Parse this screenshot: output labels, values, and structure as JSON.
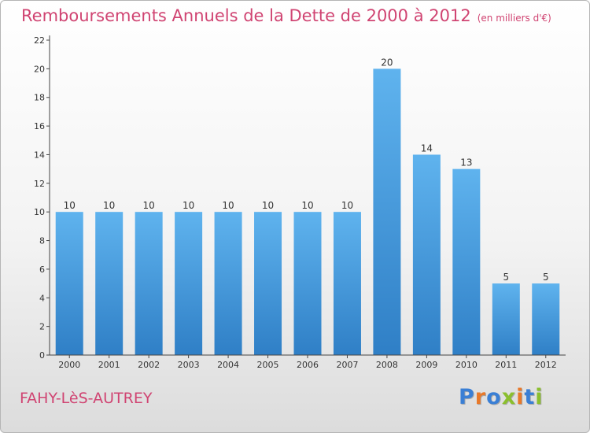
{
  "title": "Remboursements Annuels de la Dette de 2000 à 2012",
  "unit": "(en milliers d'€)",
  "commune": "FAHY-LèS-AUTREY",
  "logo": {
    "text": "Proxiti",
    "letter_colors": [
      "#3a7fd5",
      "#e8792a",
      "#3a7fd5",
      "#8bbf2e",
      "#e8792a",
      "#3a7fd5",
      "#8bbf2e"
    ]
  },
  "chart_data": {
    "type": "bar",
    "categories": [
      "2000",
      "2001",
      "2002",
      "2003",
      "2004",
      "2005",
      "2006",
      "2007",
      "2008",
      "2009",
      "2010",
      "2011",
      "2012"
    ],
    "values": [
      10,
      10,
      10,
      10,
      10,
      10,
      10,
      10,
      20,
      14,
      13,
      5,
      5
    ],
    "ylim": [
      0,
      22
    ],
    "yticks": [
      0,
      2,
      4,
      6,
      8,
      10,
      12,
      14,
      16,
      18,
      20,
      22
    ],
    "grid": false,
    "bar_color": "#4a9fe0",
    "title": "Remboursements Annuels de la Dette de 2000 à 2012",
    "xlabel": "",
    "ylabel": ""
  }
}
